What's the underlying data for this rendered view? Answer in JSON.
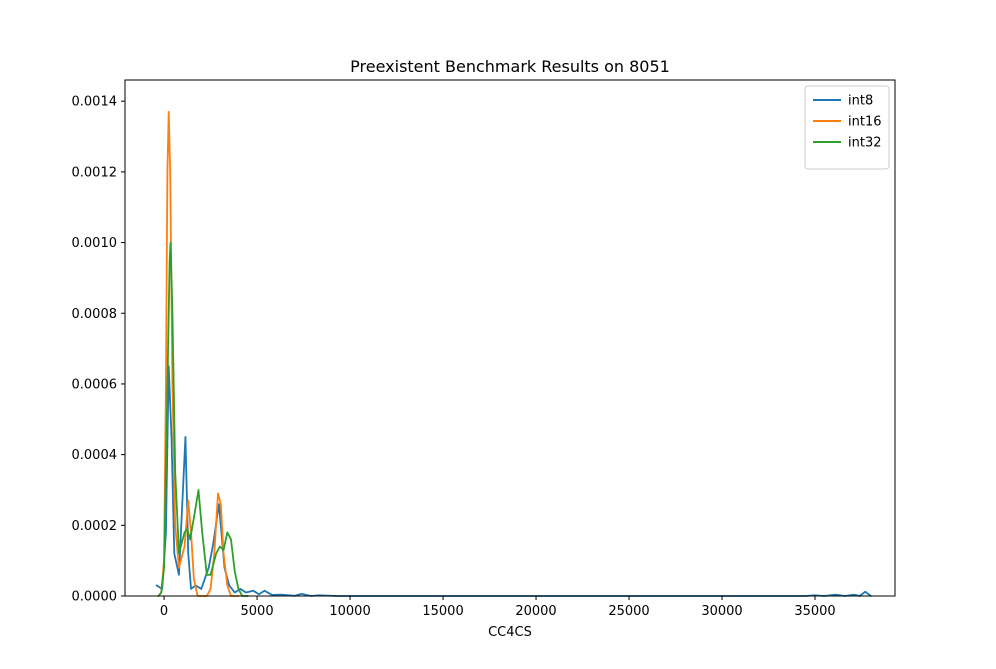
{
  "chart_data": {
    "type": "line",
    "title": "Preexistent Benchmark Results on 8051",
    "xlabel": "CC4CS",
    "ylabel": "",
    "xlim": [
      -2100,
      39300
    ],
    "ylim": [
      0,
      0.00146
    ],
    "xticks": [
      0,
      5000,
      10000,
      15000,
      20000,
      25000,
      30000,
      35000
    ],
    "yticks": [
      0.0,
      0.0002,
      0.0004,
      0.0006,
      0.0008,
      0.001,
      0.0012,
      0.0014
    ],
    "xtick_labels": [
      "0",
      "5000",
      "10000",
      "15000",
      "20000",
      "25000",
      "30000",
      "35000"
    ],
    "ytick_labels": [
      "0.0000",
      "0.0002",
      "0.0004",
      "0.0006",
      "0.0008",
      "0.0010",
      "0.0012",
      "0.0014"
    ],
    "grid": false,
    "legend_position": "top-right",
    "series": [
      {
        "name": "int8",
        "color": "#1f77b4",
        "points": [
          [
            -400,
            3e-05
          ],
          [
            -100,
            2e-05
          ],
          [
            100,
            0.00018
          ],
          [
            250,
            0.00065
          ],
          [
            400,
            0.00045
          ],
          [
            550,
            0.00012
          ],
          [
            800,
            6e-05
          ],
          [
            1150,
            0.00045
          ],
          [
            1300,
            0.00012
          ],
          [
            1450,
            2e-05
          ],
          [
            1700,
            3e-05
          ],
          [
            2000,
            2e-05
          ],
          [
            2400,
            8e-05
          ],
          [
            2650,
            0.00015
          ],
          [
            2950,
            0.00026
          ],
          [
            3250,
            8e-05
          ],
          [
            3500,
            3e-05
          ],
          [
            3800,
            1e-05
          ],
          [
            4100,
            2e-05
          ],
          [
            4400,
            1e-05
          ],
          [
            4800,
            1.5e-05
          ],
          [
            5100,
            5e-06
          ],
          [
            5400,
            1.5e-05
          ],
          [
            5800,
            3e-06
          ],
          [
            6300,
            4e-06
          ],
          [
            7000,
            5e-07
          ],
          [
            7400,
            6e-06
          ],
          [
            7900,
            0.0
          ],
          [
            8300,
            2e-06
          ],
          [
            8800,
            1e-06
          ],
          [
            9300,
            0.0
          ],
          [
            12000,
            0.0
          ],
          [
            16000,
            0.0
          ],
          [
            20000,
            0.0
          ],
          [
            25000,
            0.0
          ],
          [
            30000,
            0.0
          ],
          [
            34500,
            0.0
          ],
          [
            35000,
            2e-06
          ],
          [
            35500,
            0.0
          ],
          [
            36100,
            4e-06
          ],
          [
            36600,
            0.0
          ],
          [
            37100,
            4e-06
          ],
          [
            37400,
            0.0
          ],
          [
            37700,
            1.2e-05
          ],
          [
            38000,
            0.0
          ]
        ]
      },
      {
        "name": "int16",
        "color": "#ff7f0e",
        "points": [
          [
            -300,
            0.0
          ],
          [
            -150,
            1e-05
          ],
          [
            0,
            0.0001
          ],
          [
            100,
            0.0006
          ],
          [
            180,
            0.0012
          ],
          [
            250,
            0.00137
          ],
          [
            330,
            0.0012
          ],
          [
            450,
            0.0006
          ],
          [
            600,
            0.0002
          ],
          [
            800,
            8e-05
          ],
          [
            950,
            0.00011
          ],
          [
            1100,
            0.00014
          ],
          [
            1300,
            0.00027
          ],
          [
            1450,
            0.00018
          ],
          [
            1600,
            5e-05
          ],
          [
            1800,
            0.0
          ],
          [
            2300,
            0.0
          ],
          [
            2500,
            2e-05
          ],
          [
            2700,
            0.00012
          ],
          [
            2900,
            0.00029
          ],
          [
            3050,
            0.00026
          ],
          [
            3200,
            0.00012
          ],
          [
            3400,
            3e-05
          ],
          [
            3600,
            0.0
          ],
          [
            4000,
            0.0
          ]
        ]
      },
      {
        "name": "int32",
        "color": "#2ca02c",
        "points": [
          [
            -300,
            0.0
          ],
          [
            -150,
            1e-05
          ],
          [
            0,
            8e-05
          ],
          [
            150,
            0.0005
          ],
          [
            300,
            0.00095
          ],
          [
            350,
            0.001
          ],
          [
            450,
            0.0008
          ],
          [
            600,
            0.00035
          ],
          [
            800,
            0.00012
          ],
          [
            950,
            0.00015
          ],
          [
            1100,
            0.00018
          ],
          [
            1250,
            0.00019
          ],
          [
            1400,
            0.00016
          ],
          [
            1600,
            0.00022
          ],
          [
            1850,
            0.0003
          ],
          [
            2050,
            0.00018
          ],
          [
            2300,
            6e-05
          ],
          [
            2500,
            6e-05
          ],
          [
            2800,
            0.00012
          ],
          [
            3000,
            0.00014
          ],
          [
            3200,
            0.00013
          ],
          [
            3400,
            0.00018
          ],
          [
            3600,
            0.00016
          ],
          [
            3800,
            7e-05
          ],
          [
            4000,
            2e-05
          ],
          [
            4200,
            0.0
          ],
          [
            4500,
            0.0
          ]
        ]
      }
    ]
  }
}
